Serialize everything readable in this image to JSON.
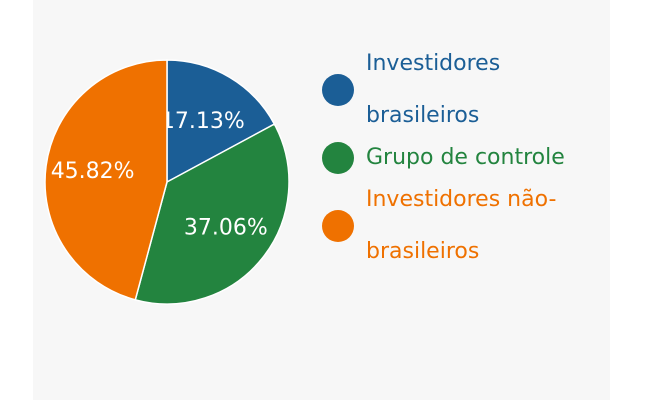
{
  "chart_data": {
    "type": "pie",
    "categories": [
      "Investidores brasileiros",
      "Grupo de controle",
      "Investidores não-brasileiros"
    ],
    "values": [
      17.13,
      37.06,
      45.82
    ],
    "value_labels": [
      "17.13%",
      "37.06%",
      "45.82%"
    ],
    "colors": [
      "#1b5e96",
      "#23843f",
      "#ef7100"
    ]
  }
}
